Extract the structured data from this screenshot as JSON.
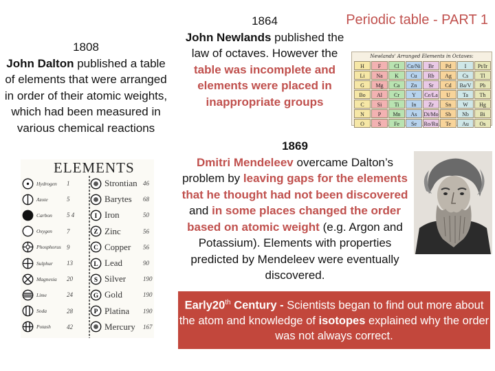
{
  "title": "Periodic table - PART 1",
  "dalton": {
    "year": "1808",
    "name": "John Dalton",
    "text": "published a table of elements that were arranged in order of their atomic weights, which had been measured in various chemical reactions"
  },
  "newlands": {
    "year": "1864",
    "name": "John Newlands",
    "text": "published the law of octaves. However the",
    "highlight": "table was incomplete and elements were placed in inappropriate groups"
  },
  "octave_table": {
    "title": "Newlands' Arranged Elements in Octaves:",
    "rows": [
      [
        "H",
        "F",
        "Cl",
        "Co/Ni",
        "Br",
        "Pd",
        "I",
        "Pt/Ir"
      ],
      [
        "Li",
        "Na",
        "K",
        "Cu",
        "Rb",
        "Ag",
        "Cs",
        "Tl"
      ],
      [
        "G",
        "Mg",
        "Ca",
        "Zn",
        "Sr",
        "Cd",
        "Ba/V",
        "Pb"
      ],
      [
        "Bo",
        "Al",
        "Cr",
        "Y",
        "Ce/La",
        "U",
        "Ta",
        "Th"
      ],
      [
        "C",
        "Si",
        "Ti",
        "In",
        "Zr",
        "Sn",
        "W",
        "Hg"
      ],
      [
        "N",
        "P",
        "Mn",
        "As",
        "Di/Mo",
        "Sb",
        "Nb",
        "Bi"
      ],
      [
        "O",
        "S",
        "Fe",
        "Se",
        "Ro/Ru",
        "Te",
        "Au",
        "Os"
      ]
    ],
    "colors": [
      "#f6e7a6",
      "#f3b2b2",
      "#b9e3b1",
      "#b7d3ee",
      "#e9c9e6",
      "#f8d49a",
      "#cfe7e8",
      "#e6e6b8"
    ]
  },
  "mendeleev": {
    "year": "1869",
    "name": "Dmitri Mendeleev",
    "p1": "overcame Dalton’s problem by",
    "h1": "leaving gaps for the elements that he thought had not been discovered",
    "p2": "and",
    "h2": "in some places changed the order based on atomic weight",
    "p3": "(e.g. Argon and Potassium). Elements with properties predicted by Mendeleev were eventually discovered."
  },
  "dalton_chart": {
    "heading": "ELEMENTS",
    "left": [
      {
        "name": "Hydrogen",
        "weight": "1",
        "symbol": "dot-circle"
      },
      {
        "name": "Azote",
        "weight": "5",
        "symbol": "bar-circle"
      },
      {
        "name": "Carbon",
        "weight": "5 4",
        "symbol": "filled-circle"
      },
      {
        "name": "Oxygen",
        "weight": "7",
        "symbol": "empty-circle"
      },
      {
        "name": "Phosphorus",
        "weight": "9",
        "symbol": "sun-circle"
      },
      {
        "name": "Sulphur",
        "weight": "13",
        "symbol": "plus-circle"
      },
      {
        "name": "Magnesia",
        "weight": "20",
        "symbol": "cross-circle"
      },
      {
        "name": "Lime",
        "weight": "24",
        "symbol": "striped-circle"
      },
      {
        "name": "Soda",
        "weight": "28",
        "symbol": "vbar-circle"
      },
      {
        "name": "Potash",
        "weight": "42",
        "symbol": "grid-circle"
      }
    ],
    "right": [
      {
        "name": "Strontian",
        "weight": "46",
        "letter": ""
      },
      {
        "name": "Barytes",
        "weight": "68",
        "letter": ""
      },
      {
        "name": "Iron",
        "weight": "50",
        "letter": "I"
      },
      {
        "name": "Zinc",
        "weight": "56",
        "letter": "Z"
      },
      {
        "name": "Copper",
        "weight": "56",
        "letter": "C"
      },
      {
        "name": "Lead",
        "weight": "90",
        "letter": "L"
      },
      {
        "name": "Silver",
        "weight": "190",
        "letter": "S"
      },
      {
        "name": "Gold",
        "weight": "190",
        "letter": "G"
      },
      {
        "name": "Platina",
        "weight": "190",
        "letter": "P"
      },
      {
        "name": "Mercury",
        "weight": "167",
        "letter": ""
      }
    ]
  },
  "early": {
    "lead_a": "Early20",
    "sup": "th",
    "lead_b": "Century -",
    "t1": "Scientists began to find out more about the atom and knowledge of",
    "bold": "isotopes",
    "t2": "explained why the order was not always correct."
  }
}
